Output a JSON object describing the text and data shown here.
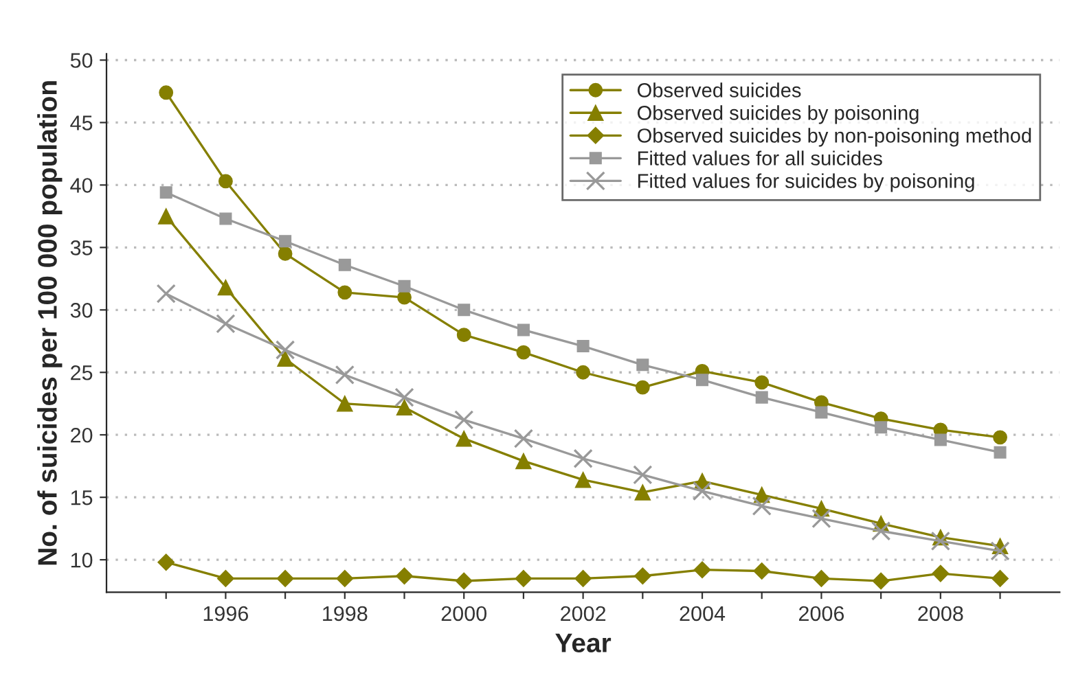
{
  "chart_data": {
    "type": "line",
    "xlabel": "Year",
    "ylabel": "No. of suicides per 100 000 population",
    "x": [
      1995,
      1996,
      1997,
      1998,
      1999,
      2000,
      2001,
      2002,
      2003,
      2004,
      2005,
      2006,
      2007,
      2008,
      2009
    ],
    "series": [
      {
        "name": "Observed suicides",
        "color": "#857f00",
        "marker": "circle",
        "values": [
          47.4,
          40.3,
          34.5,
          31.4,
          31.0,
          28.0,
          26.6,
          25.0,
          23.8,
          25.1,
          24.2,
          22.6,
          21.3,
          20.4,
          19.8
        ]
      },
      {
        "name": "Observed suicides by poisoning",
        "color": "#857f00",
        "marker": "triangle",
        "values": [
          37.5,
          31.8,
          26.1,
          22.5,
          22.2,
          19.7,
          17.9,
          16.4,
          15.4,
          16.3,
          15.2,
          14.1,
          12.9,
          11.8,
          11.1
        ]
      },
      {
        "name": "Observed suicides by non-poisoning method",
        "color": "#857f00",
        "marker": "diamond",
        "values": [
          9.8,
          8.5,
          8.5,
          8.5,
          8.7,
          8.3,
          8.5,
          8.5,
          8.7,
          9.2,
          9.1,
          8.5,
          8.3,
          8.9,
          8.5
        ]
      },
      {
        "name": "Fitted values for all suicides",
        "color": "#999999",
        "marker": "square",
        "values": [
          39.4,
          37.3,
          35.5,
          33.6,
          31.9,
          30.0,
          28.4,
          27.1,
          25.6,
          24.4,
          23.0,
          21.8,
          20.6,
          19.6,
          18.6
        ]
      },
      {
        "name": "Fitted values for suicides by poisoning",
        "color": "#999999",
        "marker": "cross",
        "values": [
          31.3,
          28.9,
          26.8,
          24.8,
          23.0,
          21.2,
          19.7,
          18.1,
          16.8,
          15.5,
          14.3,
          13.3,
          12.3,
          11.5,
          10.7
        ]
      }
    ],
    "xlim": [
      1994,
      2010
    ],
    "xticks": [
      {
        "value": 1995,
        "label": null
      },
      1996,
      {
        "value": 1997,
        "label": null
      },
      1998,
      {
        "value": 1999,
        "label": null
      },
      2000,
      {
        "value": 2001,
        "label": null
      },
      2002,
      {
        "value": 2003,
        "label": null
      },
      2004,
      {
        "value": 2005,
        "label": null
      },
      2006,
      {
        "value": 2007,
        "label": null
      },
      2008,
      {
        "value": 2009,
        "label": null
      }
    ],
    "ylim": [
      7.4,
      50.5
    ],
    "yticks": [
      10,
      15,
      20,
      25,
      30,
      35,
      40,
      45,
      50
    ],
    "grid": "y",
    "legend": "top right",
    "line_style": "solid"
  }
}
